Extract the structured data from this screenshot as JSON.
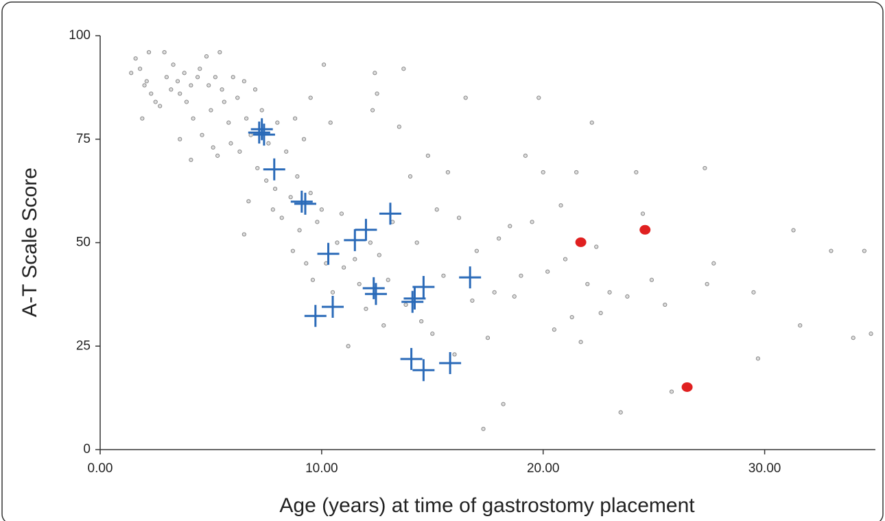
{
  "chart_data": {
    "type": "scatter",
    "xlabel": "Age (years) at time of gastrostomy placement",
    "ylabel": "A-T Scale Score",
    "xlim": [
      0,
      35
    ],
    "ylim": [
      0,
      100
    ],
    "xticks": [
      {
        "value": 0,
        "label": "0.00"
      },
      {
        "value": 10,
        "label": "10.00"
      },
      {
        "value": 20,
        "label": "20.00"
      },
      {
        "value": 30,
        "label": "30.00"
      }
    ],
    "yticks": [
      0,
      25,
      50,
      75,
      100
    ],
    "series": [
      {
        "marker": "circle-open",
        "color": "#888888",
        "x": [
          1.4,
          1.6,
          1.8,
          1.9,
          2,
          2.1,
          2.2,
          2.3,
          2.5,
          2.7,
          2.9,
          3,
          3.2,
          3.3,
          3.5,
          3.6,
          3.8,
          3.9,
          4.1,
          4.2,
          4.4,
          4.5,
          4.6,
          4.8,
          4.9,
          5,
          5.1,
          5.2,
          5.4,
          5.5,
          5.6,
          5.8,
          5.9,
          6,
          6.2,
          6.3,
          6.5,
          6.6,
          6.7,
          6.8,
          7,
          7.1,
          7.3,
          7.5,
          7.6,
          7.8,
          3.6,
          4.1,
          5.3,
          6.5,
          7.9,
          8.2,
          8.4,
          8.6,
          8.7,
          8.9,
          9,
          9.2,
          9.3,
          9.5,
          9.6,
          9.8,
          10,
          10.2,
          10.4,
          10.5,
          10.7,
          11,
          11.2,
          10.9,
          11.5,
          11.7,
          12,
          12.2,
          12.5,
          12.4,
          12.3,
          12.6,
          12.8,
          13,
          13.2,
          13.5,
          13.7,
          13.8,
          14,
          14.3,
          14.5,
          14.8,
          15,
          15.2,
          15.5,
          15.7,
          16,
          16.2,
          16.5,
          16.8,
          17,
          17.3,
          17.5,
          17.8,
          18,
          18.2,
          18.5,
          18.7,
          19,
          19.2,
          19.5,
          19.8,
          20,
          20.2,
          20.5,
          20.8,
          21,
          21.3,
          21.5,
          21.7,
          22,
          22.2,
          22.4,
          22.6,
          23,
          23.5,
          23.8,
          24.2,
          24.5,
          24.9,
          25.5,
          25.8,
          27.3,
          27.4,
          27.7,
          29.5,
          29.7,
          31.3,
          31.6,
          33,
          34,
          34.5,
          34.8,
          10.1,
          9.5,
          8,
          8.8
        ],
        "values": [
          91,
          94.5,
          92,
          80,
          88,
          89,
          96,
          86,
          84,
          83,
          96,
          90,
          87,
          93,
          89,
          86,
          91,
          84,
          88,
          80,
          90,
          92,
          76,
          95,
          88,
          82,
          73,
          90,
          96,
          87,
          84,
          79,
          74,
          90,
          85,
          72,
          89,
          80,
          60,
          76,
          87,
          68,
          82,
          65,
          74,
          58,
          75,
          70,
          71,
          52,
          63,
          56,
          72,
          61,
          48,
          66,
          53,
          75,
          45,
          62,
          41,
          55,
          58,
          45,
          79,
          38,
          50,
          44,
          25,
          57,
          46,
          40,
          34,
          50,
          86,
          91,
          82,
          47,
          30,
          41,
          55,
          78,
          92,
          35,
          66,
          50,
          31,
          71,
          28,
          58,
          42,
          67,
          23,
          56,
          85,
          36,
          48,
          5,
          27,
          38,
          51,
          11,
          54,
          37,
          42,
          71,
          55,
          85,
          67,
          43,
          29,
          59,
          46,
          32,
          67,
          26,
          40,
          79,
          49,
          33,
          38,
          9,
          37,
          67,
          57,
          41,
          35,
          14,
          68,
          40,
          45,
          38,
          22,
          53,
          30,
          48,
          27,
          48,
          28,
          93,
          85,
          79,
          80
        ]
      },
      {
        "marker": "plus",
        "color": "#2a6ab8",
        "x": [
          7.18,
          7.4,
          7.86,
          9.1,
          9.26,
          10.3,
          9.72,
          10.5,
          11.5,
          12.0,
          13.1,
          12.35,
          12.45,
          14.1,
          14.2,
          14.6,
          14.05,
          14.6,
          15.8,
          16.7,
          7.3
        ],
        "values": [
          76.6,
          76.1,
          67.7,
          59.9,
          59.4,
          47.3,
          32.3,
          34.5,
          50.6,
          53.1,
          57.0,
          39.0,
          37.6,
          35.7,
          36.5,
          39.3,
          21.9,
          19.2,
          20.9,
          41.6,
          77.4
        ]
      },
      {
        "marker": "circle-filled",
        "color": "#e02020",
        "x": [
          21.7,
          24.6,
          26.5
        ],
        "values": [
          50.1,
          53.1,
          15.1
        ]
      }
    ]
  }
}
